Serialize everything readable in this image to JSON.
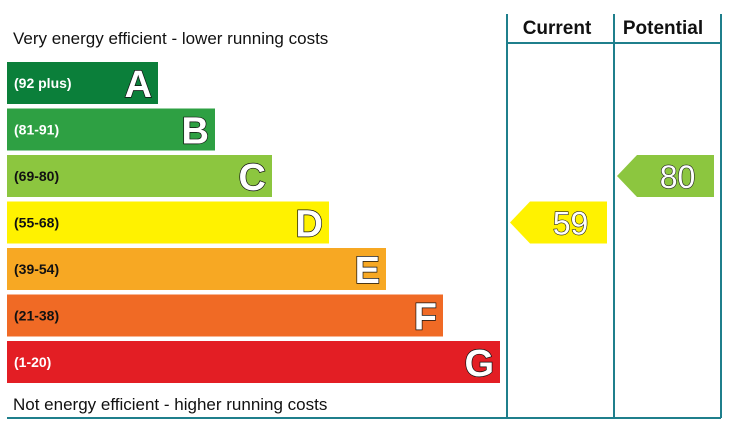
{
  "chart_data": {
    "type": "bar",
    "top_caption": "Very energy efficient - lower running costs",
    "bottom_caption": "Not energy efficient - higher running costs",
    "columns": {
      "current": "Current",
      "potential": "Potential"
    },
    "bands": [
      {
        "letter": "A",
        "range": "(92 plus)",
        "min": 92,
        "max": 100,
        "color": "#0b7f3a",
        "range_color": "#ffffff"
      },
      {
        "letter": "B",
        "range": "(81-91)",
        "min": 81,
        "max": 91,
        "color": "#2ea043",
        "range_color": "#ffffff"
      },
      {
        "letter": "C",
        "range": "(69-80)",
        "min": 69,
        "max": 80,
        "color": "#8cc63f",
        "range_color": "#111111"
      },
      {
        "letter": "D",
        "range": "(55-68)",
        "min": 55,
        "max": 68,
        "color": "#fff200",
        "range_color": "#111111"
      },
      {
        "letter": "E",
        "range": "(39-54)",
        "min": 39,
        "max": 54,
        "color": "#f7a823",
        "range_color": "#111111"
      },
      {
        "letter": "F",
        "range": "(21-38)",
        "min": 21,
        "max": 38,
        "color": "#f06a25",
        "range_color": "#111111"
      },
      {
        "letter": "G",
        "range": "(1-20)",
        "min": 1,
        "max": 20,
        "color": "#e31e24",
        "range_color": "#ffffff"
      }
    ],
    "current": {
      "value": 59,
      "band": "D",
      "color": "#fff200"
    },
    "potential": {
      "value": 80,
      "band": "C",
      "color": "#8cc63f"
    }
  }
}
